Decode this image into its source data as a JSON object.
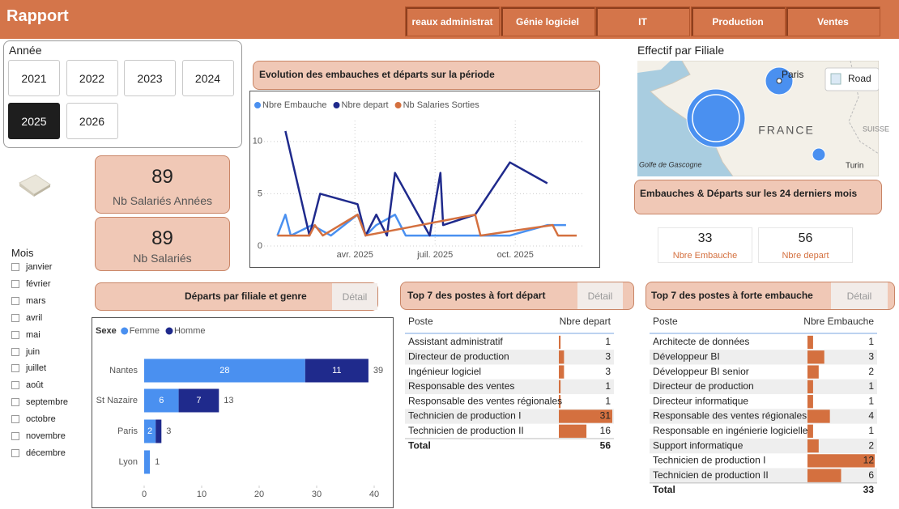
{
  "header": {
    "title": "Rapport",
    "tabs": [
      "reaux administrat",
      "Génie logiciel",
      "IT",
      "Production",
      "Ventes"
    ]
  },
  "year_filter": {
    "label": "Année",
    "years": [
      "2021",
      "2022",
      "2023",
      "2024",
      "2025",
      "2026"
    ],
    "selected_index": 4
  },
  "kpis": [
    {
      "value": 89,
      "label": "Nb Salariés Années"
    },
    {
      "value": 89,
      "label": "Nb Salariés"
    }
  ],
  "month_filter": {
    "label": "Mois",
    "months": [
      "janvier",
      "février",
      "mars",
      "avril",
      "mai",
      "juin",
      "juillet",
      "août",
      "septembre",
      "octobre",
      "novembre",
      "décembre"
    ]
  },
  "line_chart": {
    "type": "line",
    "title": "Evolution des embauches et départs sur la période",
    "xlim": [
      -0.4,
      11.6
    ],
    "xticks": [
      {
        "value": 3,
        "label": "avr. 2025"
      },
      {
        "value": 6,
        "label": "juil. 2025"
      },
      {
        "value": 9,
        "label": "oct. 2025"
      }
    ],
    "ylim": [
      0,
      12
    ],
    "yticks": [
      0,
      5,
      10
    ],
    "grid": true,
    "series": [
      {
        "name": "Nbre Embauche",
        "color": "#4a90f0",
        "x": [
          0.1,
          0.4,
          0.6,
          1.4,
          2.1,
          3.1,
          3.4,
          3.8,
          4.5,
          4.9,
          8.8,
          10.2,
          10.9
        ],
        "values": [
          1,
          3,
          1,
          2,
          1,
          3,
          1,
          2,
          3,
          1,
          1,
          2,
          2
        ]
      },
      {
        "name": "Nbre depart",
        "color": "#1f2a8c",
        "x": [
          0.4,
          1.3,
          1.7,
          3.1,
          3.4,
          3.8,
          4.2,
          4.5,
          5.8,
          6.2,
          6.3,
          7.5,
          8.8,
          10.2
        ],
        "values": [
          11,
          1,
          5,
          4,
          1,
          3,
          1,
          7,
          1,
          7,
          2,
          3,
          8,
          6
        ]
      },
      {
        "name": "Nb Salaries Sorties",
        "color": "#d4703f",
        "x": [
          0.1,
          1.3,
          1.5,
          1.8,
          3.1,
          3.4,
          7.5,
          7.7,
          10.4,
          10.6,
          11.3
        ],
        "values": [
          1,
          1,
          2,
          1,
          3,
          1,
          3,
          1,
          2,
          1,
          1
        ]
      }
    ]
  },
  "map": {
    "title": "Effectif par Filiale",
    "places": [
      "Paris",
      "FRANCE",
      "SUISSE",
      "Turin",
      "Golfe de Gascogne"
    ],
    "road_button": "Road"
  },
  "summary": {
    "title": "Embauches & Départs sur les 24 derniers mois",
    "cards": [
      {
        "value": 33,
        "label": "Nbre Embauche"
      },
      {
        "value": 56,
        "label": "Nbre depart"
      }
    ]
  },
  "bar_chart": {
    "type": "bar",
    "orientation": "horizontal",
    "stacked": true,
    "title": "Départs par filiale et genre",
    "button": "Détail",
    "legend_title": "Sexe",
    "categories": [
      "Nantes",
      "St Nazaire",
      "Paris",
      "Lyon"
    ],
    "series": [
      {
        "name": "Femme",
        "color": "#4a90f0",
        "values": [
          28,
          6,
          2,
          1
        ]
      },
      {
        "name": "Homme",
        "color": "#1f2a8c",
        "values": [
          11,
          7,
          1,
          null
        ]
      }
    ],
    "totals": [
      39,
      13,
      3,
      1
    ],
    "xlim": [
      0,
      40
    ],
    "xticks": [
      0,
      10,
      20,
      30,
      40
    ]
  },
  "departures_table": {
    "title": "Top 7 des postes à fort départ",
    "button": "Détail",
    "columns": [
      "Poste",
      "Nbre depart"
    ],
    "rows": [
      [
        "Assistant administratif",
        1
      ],
      [
        "Directeur de production",
        3
      ],
      [
        "Ingénieur logiciel",
        3
      ],
      [
        "Responsable des ventes",
        1
      ],
      [
        "Responsable des ventes régionales",
        1
      ],
      [
        "Technicien de production I",
        31
      ],
      [
        "Technicien de production II",
        16
      ]
    ],
    "total_label": "Total",
    "total": 56,
    "bar_color": "#d4703f"
  },
  "hires_table": {
    "title": "Top 7 des postes à forte embauche",
    "button": "Détail",
    "columns": [
      "Poste",
      "Nbre Embauche"
    ],
    "rows": [
      [
        "Architecte de données",
        1
      ],
      [
        "Développeur BI",
        3
      ],
      [
        "Développeur BI senior",
        2
      ],
      [
        "Directeur de production",
        1
      ],
      [
        "Directeur informatique",
        1
      ],
      [
        "Responsable des ventes régionales",
        4
      ],
      [
        "Responsable en ingénierie logicielle",
        1
      ],
      [
        "Support informatique",
        2
      ],
      [
        "Technicien de production I",
        12
      ],
      [
        "Technicien de production II",
        6
      ]
    ],
    "total_label": "Total",
    "total": 33,
    "bar_color": "#d4703f"
  }
}
